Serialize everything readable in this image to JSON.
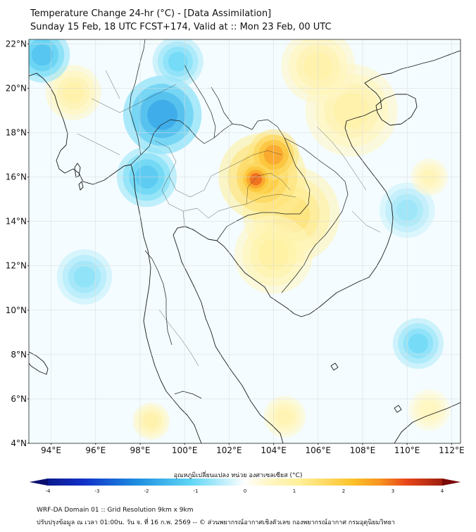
{
  "title": {
    "line1": "Temperature Change 24-hr (°C) - [Data Assimilation]",
    "line2": "Sunday 15 Feb, 18 UTC FCST+174, Valid at :: Mon 23 Feb, 00 UTC"
  },
  "map": {
    "lat_labels": [
      "22°N",
      "20°N",
      "18°N",
      "16°N",
      "14°N",
      "12°N",
      "10°N",
      "8°N",
      "6°N",
      "4°N"
    ],
    "lon_labels": [
      "94°E",
      "96°E",
      "98°E",
      "100°E",
      "102°E",
      "104°E",
      "106°E",
      "108°E",
      "110°E",
      "112°E"
    ],
    "lat_values": [
      22,
      20,
      18,
      16,
      14,
      12,
      10,
      8,
      6,
      4
    ],
    "lon_values": [
      94,
      96,
      98,
      100,
      102,
      104,
      106,
      108,
      110,
      112
    ],
    "lat_range": [
      4,
      22.2
    ],
    "lon_range": [
      93,
      112.4
    ],
    "anomalies": [
      {
        "lon": 103.2,
        "lat": 15.9,
        "value": 3.0,
        "r": 0.7
      },
      {
        "lon": 104.0,
        "lat": 17.0,
        "value": 2.5,
        "r": 1.1
      },
      {
        "lon": 103.5,
        "lat": 16.0,
        "value": 2.0,
        "r": 1.9
      },
      {
        "lon": 104.8,
        "lat": 14.3,
        "value": 1.4,
        "r": 2.1
      },
      {
        "lon": 104.0,
        "lat": 12.5,
        "value": 1.0,
        "r": 1.7
      },
      {
        "lon": 107.5,
        "lat": 19.0,
        "value": 0.9,
        "r": 2.0
      },
      {
        "lon": 106.0,
        "lat": 21.0,
        "value": 0.9,
        "r": 1.6
      },
      {
        "lon": 95.0,
        "lat": 19.8,
        "value": 0.9,
        "r": 1.2
      },
      {
        "lon": 99.0,
        "lat": 18.8,
        "value": -1.8,
        "r": 1.7
      },
      {
        "lon": 98.3,
        "lat": 16.0,
        "value": -1.3,
        "r": 1.3
      },
      {
        "lon": 93.6,
        "lat": 21.5,
        "value": -1.4,
        "r": 1.2
      },
      {
        "lon": 99.7,
        "lat": 21.2,
        "value": -1.0,
        "r": 1.1
      },
      {
        "lon": 95.5,
        "lat": 11.5,
        "value": -0.8,
        "r": 1.2
      },
      {
        "lon": 110.5,
        "lat": 8.5,
        "value": -1.0,
        "r": 1.1
      },
      {
        "lon": 110.0,
        "lat": 14.5,
        "value": -0.7,
        "r": 1.2
      },
      {
        "lon": 98.5,
        "lat": 5.0,
        "value": 0.9,
        "r": 0.8
      },
      {
        "lon": 104.5,
        "lat": 5.2,
        "value": 0.8,
        "r": 0.9
      },
      {
        "lon": 111.0,
        "lat": 16.0,
        "value": 0.7,
        "r": 0.8
      },
      {
        "lon": 111.0,
        "lat": 5.5,
        "value": 0.6,
        "r": 0.9
      }
    ]
  },
  "colorbar": {
    "title": "อุณหภูมิเปลี่ยนแปลง หน่วย องศาเซลเซียส (°C)",
    "ticks": [
      "-4",
      "-3",
      "-2",
      "-1",
      "0",
      "1",
      "2",
      "3",
      "4"
    ],
    "tick_values": [
      -4,
      -3,
      -2,
      -1,
      0,
      1,
      2,
      3,
      4
    ],
    "range": [
      -4,
      4
    ],
    "stops": [
      {
        "v": -4.0,
        "c": "#0a0f70"
      },
      {
        "v": -3.0,
        "c": "#1030c8"
      },
      {
        "v": -2.0,
        "c": "#1e8fe0"
      },
      {
        "v": -1.0,
        "c": "#5fd6f5"
      },
      {
        "v": -0.4,
        "c": "#bfeefb"
      },
      {
        "v": 0.0,
        "c": "#ffffff"
      },
      {
        "v": 0.4,
        "c": "#fff7c8"
      },
      {
        "v": 1.0,
        "c": "#fff09a"
      },
      {
        "v": 2.0,
        "c": "#fcc22a"
      },
      {
        "v": 2.5,
        "c": "#f79420"
      },
      {
        "v": 3.0,
        "c": "#e8461a"
      },
      {
        "v": 4.0,
        "c": "#7a0b08"
      }
    ]
  },
  "footer": {
    "line1": "WRF-DA Domain 01 :: Grid Resolution 9km x 9km",
    "line2": "ปรับปรุงข้อมูล ณ เวลา 01:00น. วัน จ. ที่ 16 ก.พ. 2569 -- © ส่วนพยากรณ์อากาศเชิงตัวเลข กองพยากรณ์อากาศ กรมอุตุนิยมวิทยา"
  }
}
